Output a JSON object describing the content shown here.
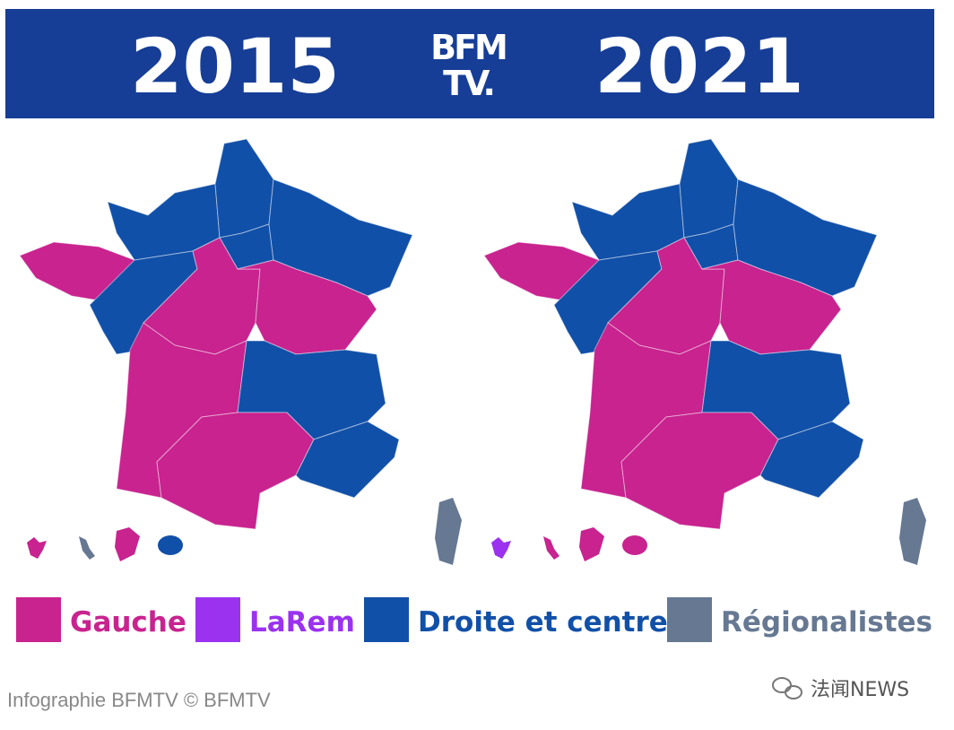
{
  "header": {
    "left_year": "2015",
    "logo": [
      "BFM",
      "TV."
    ],
    "right_year": "2021"
  },
  "legend": [
    {
      "label": "Gauche",
      "color": "#c8238f"
    },
    {
      "label": "LaRem",
      "color": "#9a32f0"
    },
    {
      "label": "Droite et centre",
      "color": "#1150a8"
    },
    {
      "label": "Régionalistes",
      "color": "#667892"
    }
  ],
  "caption": "Infographie BFMTV © BFMTV",
  "watermark": "法闻NEWS"
}
